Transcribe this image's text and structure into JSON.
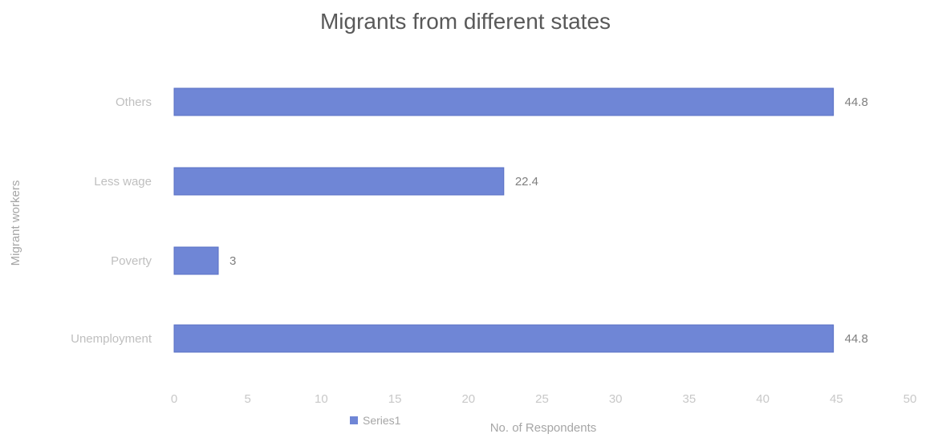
{
  "chart_data": {
    "type": "bar",
    "orientation": "horizontal",
    "title": "Migrants from different states",
    "xlabel": "No. of Respondents",
    "ylabel": "Migrant workers",
    "xlim": [
      0,
      50
    ],
    "x_ticks": [
      0,
      5,
      10,
      15,
      20,
      25,
      30,
      35,
      40,
      45,
      50
    ],
    "categories": [
      "Others",
      "Less wage",
      "Poverty",
      "Unemployment"
    ],
    "series": [
      {
        "name": "Series1",
        "values": [
          44.8,
          22.4,
          3,
          44.8
        ]
      }
    ],
    "data_labels": [
      "44.8",
      "22.4",
      "3",
      "44.8"
    ],
    "grid": false,
    "legend_position": "bottom-left",
    "colors": {
      "bar": "#6f86d6",
      "bar_edge": "#5a70c4"
    }
  }
}
